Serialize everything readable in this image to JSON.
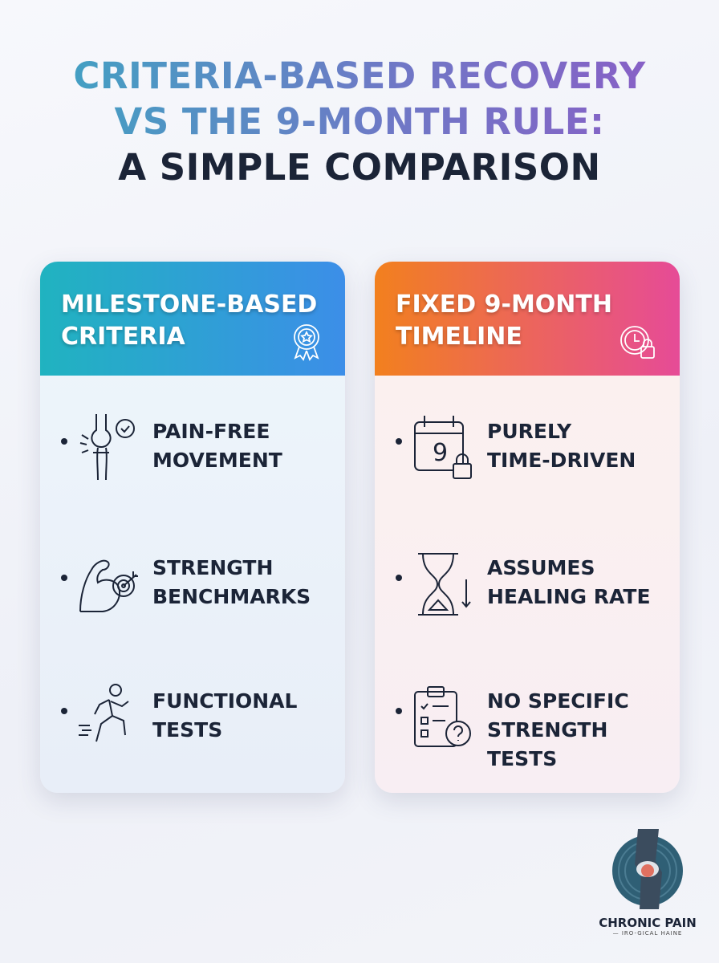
{
  "title": {
    "line1": "CRITERIA-BASED RECOVERY",
    "line2": "VS THE 9-MONTH RULE:",
    "line3": "A SIMPLE COMPARISON"
  },
  "left": {
    "heading_line1": "MILESTONE-BASED",
    "heading_line2": "CRITERIA",
    "header_icon": "award-ribbon-icon",
    "items": [
      {
        "line1": "PAIN-FREE",
        "line2": "MOVEMENT",
        "icon": "knee-check-icon"
      },
      {
        "line1": "STRENGTH",
        "line2": "BENCHMARKS",
        "icon": "muscle-target-icon"
      },
      {
        "line1": "FUNCTIONAL",
        "line2": "TESTS",
        "icon": "running-person-icon"
      }
    ]
  },
  "right": {
    "heading_line1": "FIXED 9-MONTH",
    "heading_line2": "TIMELINE",
    "header_icon": "clock-lock-icon",
    "items": [
      {
        "line1": "PURELY",
        "line2": "TIME-DRIVEN",
        "calendar_number": "9",
        "icon": "calendar-lock-icon"
      },
      {
        "line1": "ASSUMES",
        "line2": "HEALING RATE",
        "icon": "hourglass-icon"
      },
      {
        "line1": "NO SPECIFIC",
        "line2": "STRENGTH",
        "line3": "TESTS",
        "icon": "clipboard-question-icon"
      }
    ]
  },
  "logo": {
    "name": "CHRONIC PAIN",
    "tagline": "— IRO-GICAL HAINE"
  },
  "colors": {
    "left_gradient": [
      "#20b3c0",
      "#3c8ee8"
    ],
    "right_gradient": [
      "#f2801e",
      "#e64b97"
    ],
    "text": "#1b2437"
  }
}
